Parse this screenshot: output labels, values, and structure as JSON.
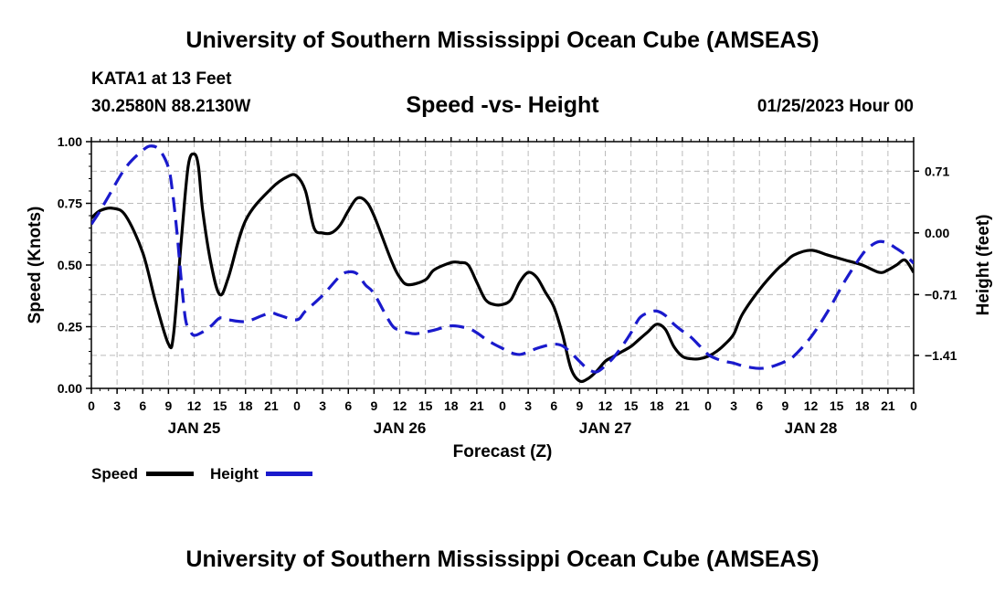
{
  "title": "University of Southern Mississippi Ocean Cube (AMSEAS)",
  "footer_title": "University of Southern Mississippi Ocean Cube (AMSEAS)",
  "station": "KATA1 at 13 Feet",
  "coordinates": "30.2580N  88.2130W",
  "subtitle": "Speed -vs- Height",
  "datetime": "01/25/2023 Hour 00",
  "colors": {
    "speed": "#000000",
    "height": "#1a1acc",
    "grid": "#bbbbbb"
  },
  "legend": {
    "speed_label": "Speed",
    "height_label": "Height"
  },
  "chart_data": {
    "type": "line",
    "title": "Speed -vs- Height",
    "xlabel": "Forecast (Z)",
    "ylabel": "Speed (Knots)",
    "ylabel_right": "Height (feet)",
    "xlim": [
      0,
      96
    ],
    "ylim": [
      0,
      1
    ],
    "ylim_right": [
      -1.79,
      1.05
    ],
    "grid": true,
    "legend_position": "bottom-left",
    "x_ticks": [
      0,
      3,
      6,
      9,
      12,
      15,
      18,
      21,
      24,
      27,
      30,
      33,
      36,
      39,
      42,
      45,
      48,
      51,
      54,
      57,
      60,
      63,
      66,
      69,
      72,
      75,
      78,
      81,
      84,
      87,
      90,
      93,
      96
    ],
    "x_tick_labels": [
      "0",
      "3",
      "6",
      "9",
      "12",
      "15",
      "18",
      "21",
      "0",
      "3",
      "6",
      "9",
      "12",
      "15",
      "18",
      "21",
      "0",
      "3",
      "6",
      "9",
      "12",
      "15",
      "18",
      "21",
      "0",
      "3",
      "6",
      "9",
      "12",
      "15",
      "18",
      "21",
      "0"
    ],
    "date_labels": [
      {
        "x": 12,
        "label": "JAN 25"
      },
      {
        "x": 36,
        "label": "JAN 26"
      },
      {
        "x": 60,
        "label": "JAN 27"
      },
      {
        "x": 84,
        "label": "JAN 28"
      }
    ],
    "y_ticks": [
      0,
      0.25,
      0.5,
      0.75,
      1.0
    ],
    "y_tick_labels": [
      "0.00",
      "0.25",
      "0.50",
      "0.75",
      "1.00"
    ],
    "y_ticks_right": [
      0.71,
      0.0,
      -0.71,
      -1.41
    ],
    "y_tick_labels_right": [
      "0.71",
      "0.00",
      "−0.71",
      "−1.41"
    ],
    "series": [
      {
        "name": "Speed",
        "axis": "left",
        "style": "solid",
        "x": [
          0,
          1,
          2.5,
          4,
          6,
          7.5,
          9,
          9.6,
          10.5,
          11.3,
          12,
          12.5,
          13,
          14,
          15,
          16,
          18,
          21,
          23,
          24,
          25,
          26,
          27,
          28,
          29,
          30,
          31,
          32,
          33,
          35,
          36,
          37,
          39,
          40,
          42,
          43,
          44,
          45,
          46,
          47,
          48,
          49,
          50,
          51,
          52,
          53,
          54,
          55,
          56,
          57,
          58,
          59,
          60,
          61,
          62,
          63,
          64,
          65,
          66,
          67,
          68,
          69,
          70,
          71,
          72,
          73,
          74,
          75,
          76,
          78,
          80,
          81,
          82,
          84,
          86,
          88,
          90,
          92,
          93,
          94,
          95,
          96
        ],
        "y": [
          0.69,
          0.72,
          0.73,
          0.7,
          0.55,
          0.35,
          0.18,
          0.22,
          0.6,
          0.9,
          0.95,
          0.9,
          0.72,
          0.5,
          0.38,
          0.45,
          0.68,
          0.81,
          0.86,
          0.86,
          0.8,
          0.65,
          0.63,
          0.63,
          0.66,
          0.72,
          0.77,
          0.76,
          0.7,
          0.52,
          0.45,
          0.42,
          0.44,
          0.48,
          0.51,
          0.51,
          0.5,
          0.43,
          0.36,
          0.34,
          0.34,
          0.36,
          0.43,
          0.47,
          0.45,
          0.39,
          0.33,
          0.22,
          0.08,
          0.03,
          0.04,
          0.07,
          0.11,
          0.13,
          0.15,
          0.17,
          0.2,
          0.23,
          0.26,
          0.24,
          0.17,
          0.13,
          0.12,
          0.12,
          0.13,
          0.15,
          0.18,
          0.22,
          0.3,
          0.4,
          0.48,
          0.51,
          0.54,
          0.56,
          0.54,
          0.52,
          0.5,
          0.47,
          0.48,
          0.5,
          0.52,
          0.47
        ]
      },
      {
        "name": "Height",
        "axis": "right",
        "style": "dashed",
        "x": [
          0,
          1,
          2,
          4,
          6,
          7,
          8,
          9,
          9.5,
          10,
          10.5,
          11,
          11.5,
          12,
          13,
          14,
          15,
          16,
          18,
          20,
          21,
          22,
          24,
          25,
          27,
          29,
          30,
          31,
          32,
          33,
          35,
          36,
          37,
          38,
          40,
          42,
          44,
          45,
          46,
          47,
          48,
          49,
          50,
          51,
          52,
          53,
          54,
          55,
          56,
          57,
          58,
          59,
          60,
          61,
          62,
          63,
          64,
          65,
          66,
          67,
          68,
          69,
          70,
          71,
          72,
          73,
          74,
          75,
          76,
          77,
          78,
          79,
          80,
          81,
          82,
          84,
          86,
          88,
          90,
          91,
          92,
          93,
          94,
          95,
          96
        ],
        "y": [
          0.1,
          0.25,
          0.42,
          0.75,
          0.95,
          1.0,
          0.95,
          0.75,
          0.45,
          0.0,
          -0.55,
          -1.0,
          -1.12,
          -1.18,
          -1.14,
          -1.07,
          -0.98,
          -1.0,
          -1.02,
          -0.95,
          -0.92,
          -0.95,
          -1.0,
          -0.9,
          -0.72,
          -0.5,
          -0.45,
          -0.47,
          -0.6,
          -0.7,
          -1.05,
          -1.12,
          -1.15,
          -1.16,
          -1.12,
          -1.07,
          -1.1,
          -1.15,
          -1.22,
          -1.28,
          -1.33,
          -1.38,
          -1.4,
          -1.37,
          -1.33,
          -1.3,
          -1.28,
          -1.3,
          -1.38,
          -1.48,
          -1.57,
          -1.6,
          -1.53,
          -1.43,
          -1.3,
          -1.15,
          -0.98,
          -0.92,
          -0.9,
          -0.95,
          -1.05,
          -1.13,
          -1.2,
          -1.3,
          -1.4,
          -1.45,
          -1.48,
          -1.5,
          -1.53,
          -1.55,
          -1.56,
          -1.55,
          -1.52,
          -1.48,
          -1.42,
          -1.2,
          -0.9,
          -0.55,
          -0.25,
          -0.15,
          -0.1,
          -0.12,
          -0.18,
          -0.25,
          -0.35
        ]
      }
    ]
  }
}
